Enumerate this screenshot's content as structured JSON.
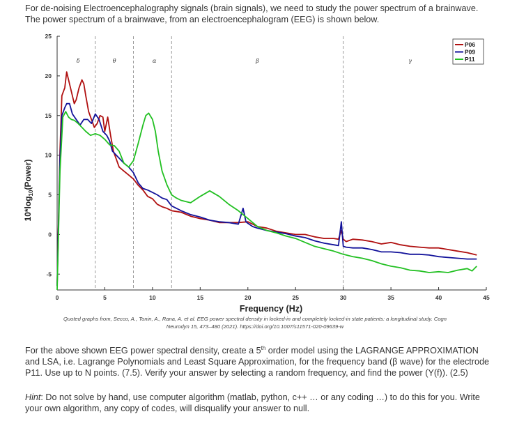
{
  "intro_text": "For de-noising Electroencephalography signals (brain signals), we need to study the power spectrum of a brainwave.  The power spectrum of a brainwave, from an electroencephalogram (EEG) is shown below.",
  "credit_line1": "Quoted graphs from, Secco, A., Tonin, A., Rana, A. et al. EEG power spectral density in locked-in and completely locked-in state patients: a longitudinal study. Cogn",
  "credit_line2": "Neurodyn 15, 473–480 (2021). https://doi.org/10.1007/s11571-020-09639-w",
  "task": {
    "p1": "For the above shown EEG power spectral density, create a 5",
    "sup": "th",
    "p2": " order model using the LAGRANGE APPROXIMATION and LSA, i.e. Lagrange Polynomials and Least Square Approximation,  for the frequency band (β wave) for the electrode P11.  Use up to N points.  (7.5).  Verify your answer by selecting a random frequency, and find the power (Y(f)).  (2.5)"
  },
  "hint": {
    "label": "Hint",
    "text": ":  Do not solve by hand, use computer algorithm (matlab, python, c++ … or any coding …)  to do this for you. Write your own algorithm, any copy of codes, will disqualify your answer to null."
  },
  "chart_data": {
    "type": "line",
    "xlabel": "Frequency (Hz)",
    "ylabel": "10*log",
    "ylabel_sub": "10",
    "ylabel_tail": "(Power)",
    "xlim": [
      0,
      45
    ],
    "ylim": [
      -7,
      25
    ],
    "xticks": [
      0,
      5,
      10,
      15,
      20,
      25,
      30,
      35,
      40,
      45
    ],
    "yticks": [
      -5,
      0,
      5,
      10,
      15,
      20,
      25
    ],
    "grid": false,
    "legend_position": "top-right",
    "band_dividers": [
      4,
      8,
      12,
      30
    ],
    "bands": [
      {
        "label": "δ",
        "x": 2.2
      },
      {
        "label": "θ",
        "x": 6
      },
      {
        "label": "α",
        "x": 10.2
      },
      {
        "label": "β",
        "x": 21
      },
      {
        "label": "γ",
        "x": 37
      }
    ],
    "colors": {
      "P06": "#b01010",
      "P09": "#12129a",
      "P11": "#22c022"
    },
    "series": [
      {
        "name": "P06",
        "x": [
          0,
          0.3,
          0.5,
          0.8,
          1,
          1.2,
          1.5,
          1.8,
          2,
          2.3,
          2.6,
          2.8,
          3,
          3.3,
          3.6,
          3.9,
          4.2,
          4.5,
          4.8,
          5.0,
          5.3,
          5.6,
          5.9,
          6.2,
          6.5,
          7,
          7.5,
          8,
          8.5,
          9,
          9.5,
          10,
          10.5,
          11,
          11.5,
          12,
          13,
          14,
          15,
          16,
          17,
          18,
          19,
          20,
          21,
          22,
          23,
          24,
          25,
          26,
          27,
          28,
          29,
          29.5,
          29.8,
          30,
          30.3,
          31,
          32,
          33,
          34,
          35,
          36,
          37,
          38,
          39,
          40,
          41,
          42,
          43,
          44
        ],
        "values": [
          -6.5,
          10.5,
          17.5,
          18.5,
          20.5,
          19.5,
          18,
          16.5,
          17,
          18.5,
          19.5,
          19,
          17.5,
          15.5,
          14.5,
          13.5,
          14,
          15,
          14.8,
          13,
          14.8,
          12.5,
          10.5,
          9.5,
          8.5,
          8,
          7.5,
          7,
          6.2,
          5.6,
          4.8,
          4.5,
          3.8,
          3.5,
          3.3,
          3.0,
          2.8,
          2.3,
          2.0,
          1.8,
          1.5,
          1.5,
          1.5,
          1.6,
          1.0,
          0.8,
          0.4,
          0.2,
          0,
          0,
          -0.3,
          -0.5,
          -0.5,
          -0.6,
          0.5,
          -0.6,
          -0.9,
          -0.6,
          -0.7,
          -0.9,
          -1.2,
          -1.0,
          -1.3,
          -1.5,
          -1.6,
          -1.7,
          -1.7,
          -1.9,
          -2.1,
          -2.3,
          -2.6
        ]
      },
      {
        "name": "P09",
        "x": [
          0,
          0.3,
          0.5,
          0.8,
          1,
          1.3,
          1.6,
          2,
          2.4,
          2.8,
          3.2,
          3.6,
          4.0,
          4.4,
          4.8,
          5.2,
          5.5,
          5.8,
          6.2,
          6.6,
          7,
          7.5,
          8,
          8.5,
          9,
          9.5,
          10,
          10.5,
          11,
          11.5,
          12,
          13,
          14,
          15,
          16,
          17,
          18,
          19,
          19.5,
          19.8,
          20,
          20.5,
          21,
          22,
          23,
          24,
          25,
          26,
          27,
          28,
          29,
          29.5,
          29.8,
          30,
          30.3,
          31,
          32,
          33,
          34,
          35,
          36,
          37,
          38,
          39,
          40,
          41,
          42,
          43,
          44
        ],
        "values": [
          -6.5,
          9.5,
          15,
          16,
          16.5,
          16.5,
          15.2,
          14.5,
          13.8,
          14.5,
          14.5,
          14,
          15.2,
          14.5,
          13,
          12.5,
          11.8,
          10.5,
          10,
          9.5,
          9.0,
          8.5,
          7.8,
          6.5,
          5.8,
          5.6,
          5.3,
          5.0,
          4.6,
          4.4,
          3.6,
          3.0,
          2.5,
          2.2,
          1.8,
          1.6,
          1.5,
          1.3,
          3.3,
          1.6,
          1.4,
          1.0,
          0.8,
          0.5,
          0.3,
          0.1,
          -0.2,
          -0.4,
          -0.8,
          -1.1,
          -1.3,
          -1.4,
          1.6,
          -1.5,
          -1.6,
          -1.7,
          -1.7,
          -1.9,
          -2.2,
          -2.2,
          -2.3,
          -2.5,
          -2.5,
          -2.6,
          -2.8,
          -2.9,
          -3.0,
          -3.1,
          -3.1
        ]
      },
      {
        "name": "P11",
        "x": [
          0,
          0.3,
          0.6,
          0.9,
          1.2,
          1.5,
          1.8,
          2.2,
          2.6,
          3.0,
          3.5,
          4.0,
          4.5,
          5.0,
          5.5,
          6.0,
          6.5,
          7.0,
          7.5,
          8,
          8.5,
          9,
          9.3,
          9.6,
          10,
          10.3,
          10.6,
          11,
          11.5,
          12,
          12.5,
          13,
          14,
          15,
          16,
          17,
          18,
          19,
          20,
          21,
          22,
          23,
          24,
          25,
          26,
          27,
          28,
          29,
          30,
          31,
          32,
          33,
          34,
          35,
          36,
          37,
          38,
          39,
          40,
          41,
          42,
          43,
          43.5,
          44
        ],
        "values": [
          -7,
          8,
          14.8,
          15.5,
          14.8,
          14.5,
          14.4,
          14,
          13.5,
          13.0,
          12.5,
          12.7,
          12.5,
          12.0,
          11.3,
          11.2,
          10.5,
          9.0,
          8.5,
          9.3,
          11.5,
          13.8,
          15.0,
          15.3,
          14.5,
          13,
          10.5,
          8.0,
          6.3,
          5.0,
          4.6,
          4.3,
          4.0,
          4.8,
          5.5,
          4.8,
          3.8,
          3.0,
          2.0,
          1.0,
          0.5,
          0.2,
          -0.2,
          -0.5,
          -1.0,
          -1.5,
          -1.8,
          -2.1,
          -2.5,
          -2.8,
          -3.0,
          -3.3,
          -3.7,
          -4.0,
          -4.2,
          -4.5,
          -4.6,
          -4.8,
          -4.7,
          -4.8,
          -4.5,
          -4.3,
          -4.6,
          -4.0
        ]
      }
    ]
  }
}
